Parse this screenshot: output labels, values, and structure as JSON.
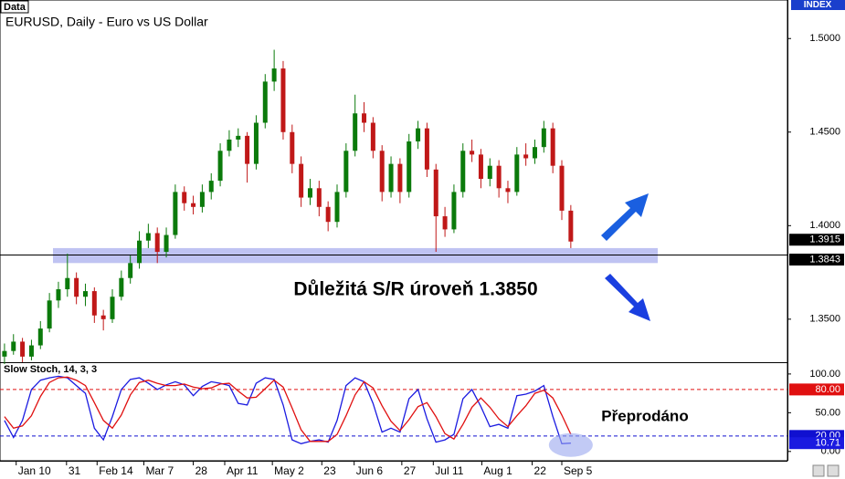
{
  "chart_data": [
    {
      "type": "candlestick",
      "tag": "Data",
      "title": "EURUSD, Daily - Euro vs US Dollar",
      "axis_tag": "INDEX",
      "up_color": "#0b7a0b",
      "down_color": "#c01818",
      "ylim": [
        1.327,
        1.5206
      ],
      "xlim": [
        -0.5,
        87.1
      ],
      "yticks": [
        {
          "value": 1.5,
          "label": "1.5000"
        },
        {
          "value": 1.45,
          "label": "1.4500"
        },
        {
          "value": 1.4,
          "label": "1.4000"
        },
        {
          "value": 1.35,
          "label": "1.3500"
        }
      ],
      "xticks": [
        {
          "value": 1.3,
          "label": "Jan 10"
        },
        {
          "value": 6.9,
          "label": "31"
        },
        {
          "value": 10.3,
          "label": "Feb 14"
        },
        {
          "value": 15.5,
          "label": "Mar 7"
        },
        {
          "value": 21.0,
          "label": "28"
        },
        {
          "value": 24.5,
          "label": "Apr 11"
        },
        {
          "value": 29.8,
          "label": "May 2"
        },
        {
          "value": 35.3,
          "label": "23"
        },
        {
          "value": 38.9,
          "label": "Jun 6"
        },
        {
          "value": 44.2,
          "label": "27"
        },
        {
          "value": 47.7,
          "label": "Jul 11"
        },
        {
          "value": 53.1,
          "label": "Aug 1"
        },
        {
          "value": 58.7,
          "label": "22"
        },
        {
          "value": 62.0,
          "label": "Sep 5"
        }
      ],
      "level": 1.3843,
      "zone": [
        1.38,
        1.388
      ],
      "zone_color": "#b4b8f0",
      "annotation": "Důležitá S/R úroveň 1.3850",
      "ohlc": [
        [
          1.33,
          1.337,
          1.326,
          1.333
        ],
        [
          1.333,
          1.342,
          1.331,
          1.338
        ],
        [
          1.338,
          1.34,
          1.327,
          1.33
        ],
        [
          1.33,
          1.339,
          1.328,
          1.336
        ],
        [
          1.336,
          1.349,
          1.334,
          1.345
        ],
        [
          1.345,
          1.364,
          1.343,
          1.36
        ],
        [
          1.36,
          1.37,
          1.356,
          1.366
        ],
        [
          1.366,
          1.385,
          1.362,
          1.372
        ],
        [
          1.372,
          1.375,
          1.358,
          1.362
        ],
        [
          1.362,
          1.369,
          1.357,
          1.365
        ],
        [
          1.365,
          1.367,
          1.348,
          1.352
        ],
        [
          1.352,
          1.355,
          1.344,
          1.35
        ],
        [
          1.35,
          1.366,
          1.348,
          1.362
        ],
        [
          1.362,
          1.376,
          1.36,
          1.372
        ],
        [
          1.372,
          1.384,
          1.369,
          1.38
        ],
        [
          1.38,
          1.397,
          1.377,
          1.392
        ],
        [
          1.392,
          1.401,
          1.388,
          1.396
        ],
        [
          1.396,
          1.399,
          1.38,
          1.386
        ],
        [
          1.386,
          1.399,
          1.383,
          1.395
        ],
        [
          1.395,
          1.422,
          1.393,
          1.418
        ],
        [
          1.418,
          1.421,
          1.408,
          1.412
        ],
        [
          1.412,
          1.416,
          1.406,
          1.41
        ],
        [
          1.41,
          1.422,
          1.407,
          1.418
        ],
        [
          1.418,
          1.428,
          1.414,
          1.424
        ],
        [
          1.424,
          1.444,
          1.421,
          1.44
        ],
        [
          1.44,
          1.451,
          1.437,
          1.446
        ],
        [
          1.446,
          1.452,
          1.442,
          1.448
        ],
        [
          1.448,
          1.45,
          1.423,
          1.433
        ],
        [
          1.433,
          1.459,
          1.43,
          1.455
        ],
        [
          1.455,
          1.481,
          1.452,
          1.477
        ],
        [
          1.477,
          1.494,
          1.472,
          1.484
        ],
        [
          1.484,
          1.488,
          1.446,
          1.45
        ],
        [
          1.45,
          1.454,
          1.428,
          1.433
        ],
        [
          1.433,
          1.437,
          1.41,
          1.415
        ],
        [
          1.415,
          1.425,
          1.411,
          1.42
        ],
        [
          1.42,
          1.424,
          1.405,
          1.41
        ],
        [
          1.41,
          1.413,
          1.397,
          1.402
        ],
        [
          1.402,
          1.422,
          1.399,
          1.418
        ],
        [
          1.418,
          1.444,
          1.415,
          1.44
        ],
        [
          1.44,
          1.47,
          1.437,
          1.46
        ],
        [
          1.46,
          1.466,
          1.45,
          1.455
        ],
        [
          1.455,
          1.458,
          1.436,
          1.44
        ],
        [
          1.44,
          1.443,
          1.413,
          1.418
        ],
        [
          1.418,
          1.437,
          1.415,
          1.433
        ],
        [
          1.433,
          1.436,
          1.412,
          1.418
        ],
        [
          1.418,
          1.449,
          1.415,
          1.445
        ],
        [
          1.445,
          1.456,
          1.441,
          1.452
        ],
        [
          1.452,
          1.455,
          1.426,
          1.43
        ],
        [
          1.43,
          1.433,
          1.386,
          1.405
        ],
        [
          1.405,
          1.41,
          1.394,
          1.398
        ],
        [
          1.398,
          1.422,
          1.396,
          1.418
        ],
        [
          1.418,
          1.444,
          1.415,
          1.44
        ],
        [
          1.44,
          1.446,
          1.434,
          1.438
        ],
        [
          1.438,
          1.441,
          1.42,
          1.425
        ],
        [
          1.425,
          1.436,
          1.421,
          1.432
        ],
        [
          1.432,
          1.435,
          1.415,
          1.42
        ],
        [
          1.42,
          1.424,
          1.412,
          1.418
        ],
        [
          1.418,
          1.442,
          1.416,
          1.438
        ],
        [
          1.438,
          1.444,
          1.432,
          1.436
        ],
        [
          1.436,
          1.446,
          1.433,
          1.442
        ],
        [
          1.442,
          1.456,
          1.439,
          1.452
        ],
        [
          1.452,
          1.455,
          1.428,
          1.432
        ],
        [
          1.432,
          1.435,
          1.403,
          1.408
        ],
        [
          1.408,
          1.411,
          1.388,
          1.3915
        ]
      ]
    },
    {
      "type": "line",
      "title": "Slow Stoch, 14, 3, 3",
      "ylim": [
        -12,
        114
      ],
      "xlim": [
        -0.5,
        87.1
      ],
      "yticks": [
        {
          "value": 100,
          "label": "100.00"
        },
        {
          "value": 50,
          "label": "50.00"
        },
        {
          "value": 0,
          "label": "0.00"
        }
      ],
      "levels": [
        {
          "value": 80,
          "label": "80.00",
          "color": "#e01010"
        },
        {
          "value": 20,
          "label": "20.00",
          "color": "#1010d0"
        }
      ],
      "annotation": "Přeprodáno",
      "series": [
        {
          "color": "#1a1ae0",
          "values": [
            40,
            18,
            40,
            80,
            92,
            95,
            97,
            95,
            85,
            75,
            30,
            15,
            45,
            80,
            93,
            95,
            88,
            80,
            86,
            90,
            86,
            72,
            84,
            90,
            88,
            85,
            62,
            60,
            88,
            95,
            93,
            60,
            15,
            10,
            13,
            15,
            12,
            40,
            85,
            95,
            90,
            62,
            25,
            30,
            25,
            68,
            80,
            42,
            12,
            15,
            22,
            68,
            80,
            58,
            32,
            35,
            30,
            72,
            74,
            78,
            85,
            45,
            10,
            10.71
          ]
        },
        {
          "color": "#e01010",
          "values": [
            45,
            30,
            33,
            46,
            71,
            89,
            95,
            96,
            92,
            85,
            63,
            40,
            30,
            47,
            73,
            89,
            92,
            88,
            85,
            85,
            87,
            83,
            81,
            82,
            87,
            88,
            78,
            69,
            70,
            81,
            92,
            83,
            56,
            28,
            13,
            13,
            13,
            22,
            46,
            73,
            90,
            82,
            59,
            39,
            27,
            41,
            58,
            63,
            45,
            23,
            16,
            35,
            57,
            69,
            57,
            42,
            32,
            46,
            59,
            75,
            79,
            69,
            47,
            22
          ]
        }
      ]
    }
  ]
}
